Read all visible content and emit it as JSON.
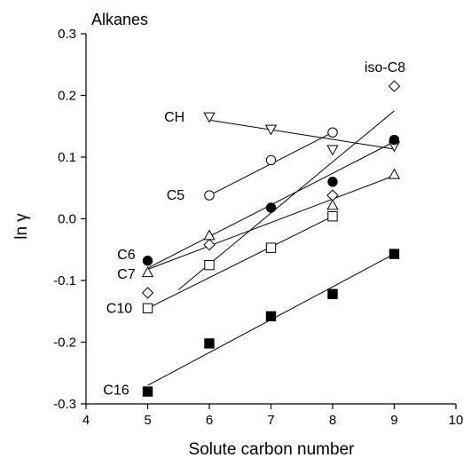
{
  "chart_data": {
    "type": "scatter",
    "title": "Alkanes",
    "xlabel": "Solute carbon number",
    "ylabel": "ln γ",
    "xlim": [
      4,
      10
    ],
    "ylim": [
      -0.3,
      0.3
    ],
    "xticks": [
      4,
      5,
      6,
      7,
      8,
      9,
      10
    ],
    "yticks": [
      -0.3,
      -0.2,
      -0.1,
      0.0,
      0.1,
      0.2,
      0.3
    ],
    "ytick_labels": [
      "-0.3",
      "-0.2",
      "-0.1",
      "0.0",
      "0.1",
      "0.2",
      "0.3"
    ],
    "grid": false,
    "series": [
      {
        "name": "CH",
        "marker": "triangle-down",
        "filled": false,
        "points": [
          [
            6,
            0.165
          ],
          [
            7,
            0.145
          ],
          [
            8,
            0.112
          ],
          [
            9,
            0.118
          ]
        ],
        "fit": [
          [
            6,
            0.16
          ],
          [
            9,
            0.113
          ]
        ],
        "label_at": [
          5.6,
          0.165
        ]
      },
      {
        "name": "C5",
        "marker": "circle",
        "filled": false,
        "points": [
          [
            6,
            0.038
          ],
          [
            7,
            0.095
          ],
          [
            8,
            0.14
          ]
        ],
        "fit": [
          [
            6,
            0.038
          ],
          [
            8,
            0.14
          ]
        ],
        "label_at": [
          5.6,
          0.038
        ]
      },
      {
        "name": "iso-C8",
        "marker": "diamond",
        "filled": false,
        "points": [
          [
            5,
            -0.12
          ],
          [
            6,
            -0.042
          ],
          [
            8,
            0.038
          ],
          [
            9,
            0.215
          ]
        ],
        "fit": [
          [
            5.5,
            -0.115
          ],
          [
            9,
            0.175
          ]
        ],
        "label_at": [
          8.85,
          0.245
        ]
      },
      {
        "name": "C6",
        "marker": "circle",
        "filled": true,
        "points": [
          [
            5,
            -0.068
          ],
          [
            7,
            0.018
          ],
          [
            8,
            0.06
          ],
          [
            9,
            0.128
          ]
        ],
        "fit": [
          [
            5,
            -0.08
          ],
          [
            9,
            0.125
          ]
        ],
        "label_at": [
          4.8,
          -0.058
        ]
      },
      {
        "name": "C7",
        "marker": "triangle-up",
        "filled": false,
        "points": [
          [
            5,
            -0.087
          ],
          [
            6,
            -0.027
          ],
          [
            8,
            0.022
          ],
          [
            9,
            0.072
          ]
        ],
        "fit": [
          [
            5,
            -0.082
          ],
          [
            9,
            0.07
          ]
        ],
        "label_at": [
          4.8,
          -0.09
        ]
      },
      {
        "name": "C10",
        "marker": "square",
        "filled": false,
        "points": [
          [
            5,
            -0.145
          ],
          [
            6,
            -0.075
          ],
          [
            7,
            -0.047
          ],
          [
            8,
            0.004
          ]
        ],
        "fit": [
          [
            5,
            -0.145
          ],
          [
            8,
            0.004
          ]
        ],
        "label_at": [
          4.75,
          -0.145
        ]
      },
      {
        "name": "C16",
        "marker": "square",
        "filled": true,
        "points": [
          [
            5,
            -0.28
          ],
          [
            6,
            -0.202
          ],
          [
            7,
            -0.158
          ],
          [
            8,
            -0.122
          ],
          [
            9,
            -0.057
          ]
        ],
        "fit": [
          [
            5,
            -0.27
          ],
          [
            9,
            -0.057
          ]
        ],
        "label_at": [
          4.7,
          -0.278
        ]
      }
    ]
  }
}
